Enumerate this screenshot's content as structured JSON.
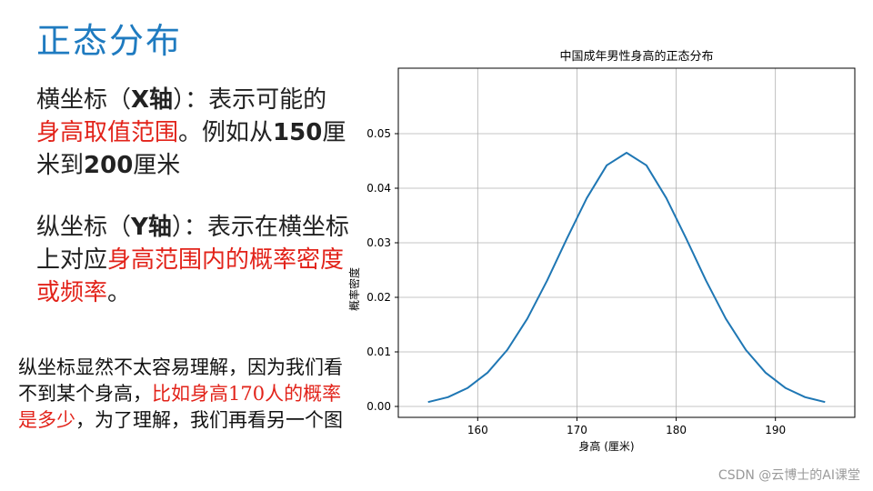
{
  "slide": {
    "title": "正态分布",
    "p1": {
      "a": "横坐标（",
      "b": "X轴",
      "c": "）：表示可能的",
      "red": "身高取值范围",
      "d": "。例如从",
      "n1": "150",
      "e": "厘米到",
      "n2": "200",
      "f": "厘米"
    },
    "p2": {
      "a": "纵坐标（",
      "b": "Y轴",
      "c": "）：表示在横坐标上对应",
      "red": "身高范围内的概率密度或频率",
      "d": "。"
    },
    "note": {
      "a": "纵坐标显然不太容易理解，因为我们看不到某个身高，",
      "red": "比如身高170人的概率是多少",
      "b": "，为了理解，我们再看另一个图"
    },
    "watermark": "CSDN @云博士的AI课堂"
  },
  "chart_data": {
    "type": "line",
    "title": "中国成年男性身高的正态分布",
    "xlabel": "身高 (厘米)",
    "ylabel": "概率密度",
    "xlim": [
      152,
      198
    ],
    "ylim": [
      -0.002,
      0.062
    ],
    "xticks": [
      160,
      170,
      180,
      190
    ],
    "yticks": [
      0.0,
      0.01,
      0.02,
      0.03,
      0.04,
      0.05
    ],
    "ytick_labels": [
      "0.00",
      "0.01",
      "0.02",
      "0.03",
      "0.04",
      "0.05"
    ],
    "grid": true,
    "color": "#1f77b4",
    "series": [
      {
        "x": [
          155,
          157,
          159,
          161,
          163,
          165,
          167,
          169,
          171,
          173,
          175,
          177,
          179,
          181,
          183,
          185,
          187,
          189,
          191,
          193,
          195
        ],
        "values": [
          0.0008,
          0.0017,
          0.0034,
          0.0062,
          0.0104,
          0.0161,
          0.0231,
          0.0308,
          0.0382,
          0.0442,
          0.0465,
          0.0442,
          0.0382,
          0.0308,
          0.0231,
          0.0161,
          0.0104,
          0.0062,
          0.0034,
          0.0017,
          0.0008
        ]
      }
    ]
  }
}
